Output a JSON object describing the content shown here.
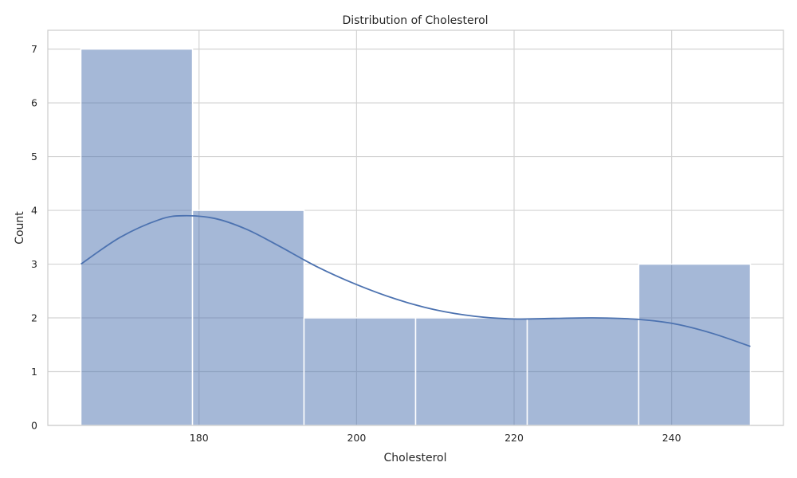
{
  "chart_data": {
    "type": "bar",
    "title": "Distribution of Cholesterol",
    "xlabel": "Cholesterol",
    "ylabel": "Count",
    "xlim": [
      160.8,
      254.2
    ],
    "ylim": [
      0,
      7.35
    ],
    "xticks": [
      180,
      200,
      220,
      240
    ],
    "yticks": [
      0,
      1,
      2,
      3,
      4,
      5,
      6,
      7
    ],
    "bins": [
      {
        "start": 165.0,
        "end": 179.17,
        "count": 7
      },
      {
        "start": 179.17,
        "end": 193.33,
        "count": 4
      },
      {
        "start": 193.33,
        "end": 207.5,
        "count": 2
      },
      {
        "start": 207.5,
        "end": 221.67,
        "count": 2
      },
      {
        "start": 221.67,
        "end": 235.83,
        "count": 2
      },
      {
        "start": 235.83,
        "end": 250.0,
        "count": 3
      }
    ],
    "kde": {
      "x": [
        165,
        170,
        175,
        178,
        182,
        186,
        190,
        195,
        200,
        205,
        210,
        215,
        220,
        225,
        230,
        235,
        240,
        245,
        250
      ],
      "y": [
        3.0,
        3.5,
        3.83,
        3.9,
        3.85,
        3.65,
        3.35,
        2.95,
        2.62,
        2.35,
        2.15,
        2.03,
        1.98,
        1.99,
        2.0,
        1.98,
        1.9,
        1.72,
        1.47
      ]
    },
    "grid": true,
    "colors": {
      "bar_fill": "#4c72b0",
      "bar_opacity": 0.5,
      "line": "#4c72b0",
      "grid": "#d3d3d3",
      "spine": "#cccccc"
    }
  }
}
